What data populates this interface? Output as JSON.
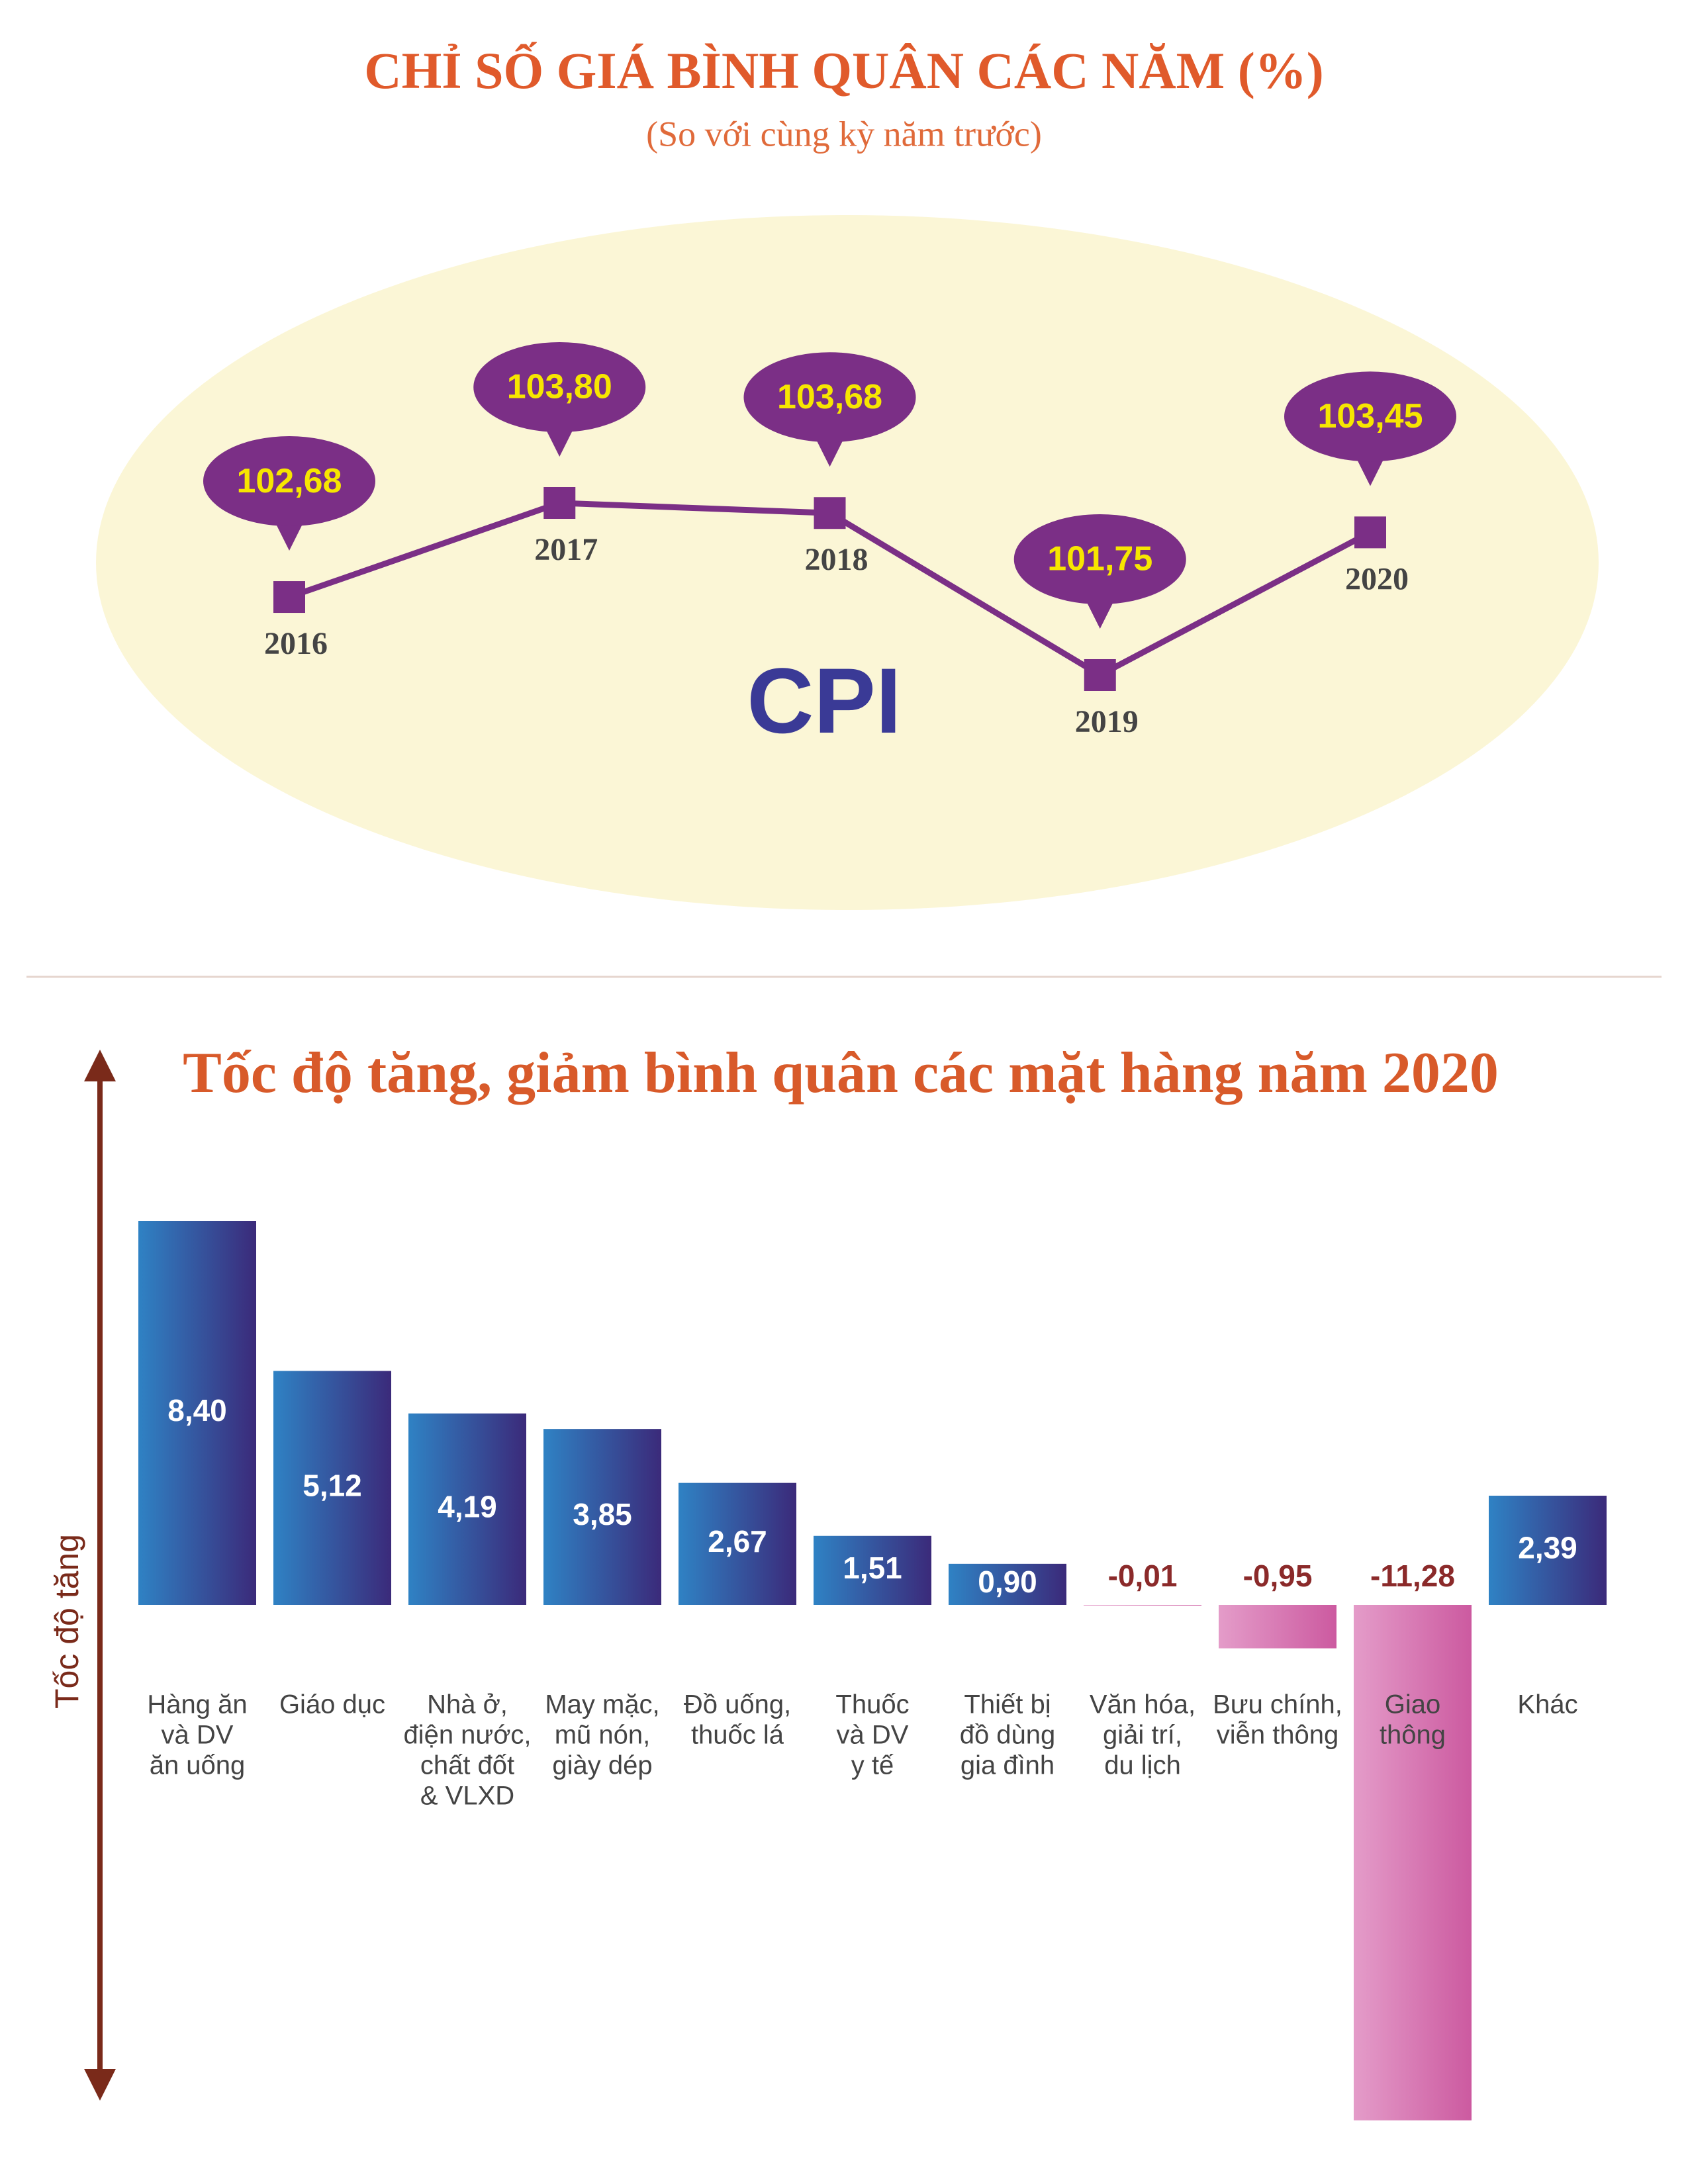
{
  "chart_data": [
    {
      "type": "line",
      "title": "CHỈ SỐ GIÁ BÌNH QUÂN CÁC NĂM (%)",
      "subtitle": "(So với cùng kỳ năm trước)",
      "annotation": "CPI",
      "categories": [
        "2016",
        "2017",
        "2018",
        "2019",
        "2020"
      ],
      "values": [
        102.68,
        103.8,
        103.68,
        101.75,
        103.45
      ],
      "value_labels": [
        "102,68",
        "103,80",
        "103,68",
        "101,75",
        "103,45"
      ],
      "color": "#7b2f86",
      "label_color": "#f7e600"
    },
    {
      "type": "bar",
      "title": "Tốc độ tăng, giảm bình quân các mặt hàng năm 2020",
      "y_label": "Tốc độ tăng",
      "categories": [
        [
          "Hàng ăn",
          "và DV",
          "ăn uống"
        ],
        [
          "Giáo dục"
        ],
        [
          "Nhà ở,",
          "điện nước,",
          "chất đốt",
          "& VLXD"
        ],
        [
          "May mặc,",
          "mũ nón,",
          "giày dép"
        ],
        [
          "Đồ uống,",
          "thuốc lá"
        ],
        [
          "Thuốc",
          "và DV",
          "y tế"
        ],
        [
          "Thiết bị",
          "đồ dùng",
          "gia đình"
        ],
        [
          "Văn hóa,",
          "giải trí,",
          "du lịch"
        ],
        [
          "Bưu chính,",
          "viễn thông"
        ],
        [
          "Giao",
          "thông"
        ],
        [
          "Khác"
        ]
      ],
      "values": [
        8.4,
        5.12,
        4.19,
        3.85,
        2.67,
        1.51,
        0.9,
        -0.01,
        -0.95,
        -11.28,
        2.39
      ],
      "value_labels": [
        "8,40",
        "5,12",
        "4,19",
        "3,85",
        "2,67",
        "1,51",
        "0,90",
        "-0,01",
        "-0,95",
        "-11,28",
        "2,39"
      ],
      "colors": [
        "#2f82c4",
        "#3b2a7a"
      ],
      "negative_colors": [
        "#e49cc9",
        "#cc5aa0"
      ]
    }
  ]
}
